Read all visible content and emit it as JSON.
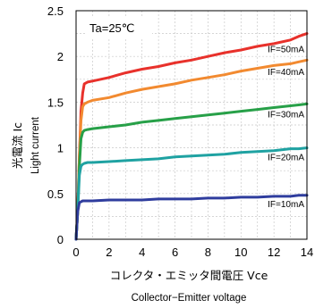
{
  "chart_data": {
    "type": "line",
    "annotation": "Ta=25℃",
    "ylabel_jp": "光電流 Ic",
    "ylabel_en": "Light current",
    "xlabel_jp": "コレクタ・エミッタ間電圧 Vce",
    "xlabel_en": "Collector−Emitter voltage",
    "xlim": [
      0,
      14
    ],
    "ylim": [
      0,
      2.5
    ],
    "x_ticks": [
      "0",
      "2",
      "4",
      "6",
      "8",
      "10",
      "12",
      "14"
    ],
    "y_ticks": [
      "0",
      "0.5",
      "1",
      "1.5",
      "2",
      "2.5"
    ],
    "grid": true,
    "series": [
      {
        "name": "IF=50mA",
        "color": "#e8312b",
        "x": [
          0,
          0.1,
          0.2,
          0.3,
          0.4,
          0.5,
          0.7,
          1,
          2,
          3,
          4,
          5,
          6,
          7,
          8,
          9,
          10,
          11,
          12,
          13,
          13.5,
          14
        ],
        "y": [
          0,
          0.3,
          0.9,
          1.4,
          1.6,
          1.7,
          1.72,
          1.73,
          1.77,
          1.82,
          1.86,
          1.89,
          1.93,
          1.96,
          2.0,
          2.04,
          2.07,
          2.11,
          2.14,
          2.18,
          2.22,
          2.25
        ]
      },
      {
        "name": "IF=40mA",
        "color": "#f28a30",
        "x": [
          0,
          0.1,
          0.2,
          0.3,
          0.4,
          0.5,
          0.7,
          1,
          2,
          3,
          4,
          5,
          6,
          7,
          8,
          9,
          10,
          11,
          12,
          13,
          13.5,
          14
        ],
        "y": [
          0,
          0.3,
          0.9,
          1.3,
          1.45,
          1.48,
          1.5,
          1.52,
          1.55,
          1.6,
          1.64,
          1.67,
          1.7,
          1.74,
          1.77,
          1.8,
          1.84,
          1.87,
          1.9,
          1.92,
          1.94,
          1.96
        ]
      },
      {
        "name": "IF=30mA",
        "color": "#27a048",
        "x": [
          0,
          0.1,
          0.2,
          0.3,
          0.4,
          0.5,
          0.7,
          1,
          2,
          3,
          4,
          5,
          6,
          7,
          8,
          9,
          10,
          11,
          12,
          13,
          13.5,
          14
        ],
        "y": [
          0,
          0.3,
          0.8,
          1.1,
          1.17,
          1.19,
          1.2,
          1.21,
          1.23,
          1.25,
          1.28,
          1.3,
          1.32,
          1.34,
          1.36,
          1.38,
          1.4,
          1.42,
          1.44,
          1.46,
          1.47,
          1.48
        ]
      },
      {
        "name": "IF=20mA",
        "color": "#1fa2a2",
        "x": [
          0,
          0.1,
          0.2,
          0.3,
          0.4,
          0.5,
          0.7,
          1,
          2,
          3,
          4,
          5,
          6,
          7,
          8,
          9,
          10,
          11,
          12,
          13,
          13.5,
          14
        ],
        "y": [
          0,
          0.3,
          0.7,
          0.8,
          0.82,
          0.83,
          0.84,
          0.84,
          0.85,
          0.86,
          0.87,
          0.88,
          0.9,
          0.91,
          0.92,
          0.93,
          0.95,
          0.96,
          0.97,
          0.99,
          0.99,
          1.0
        ]
      },
      {
        "name": "IF=10mA",
        "color": "#2f3d9e",
        "x": [
          0,
          0.1,
          0.2,
          0.3,
          0.4,
          0.5,
          0.7,
          1,
          2,
          3,
          4,
          5,
          6,
          7,
          8,
          9,
          10,
          11,
          12,
          13,
          13.5,
          14
        ],
        "y": [
          0,
          0.3,
          0.4,
          0.41,
          0.42,
          0.42,
          0.42,
          0.42,
          0.43,
          0.43,
          0.43,
          0.44,
          0.44,
          0.44,
          0.45,
          0.45,
          0.46,
          0.46,
          0.47,
          0.47,
          0.48,
          0.48
        ]
      }
    ]
  }
}
